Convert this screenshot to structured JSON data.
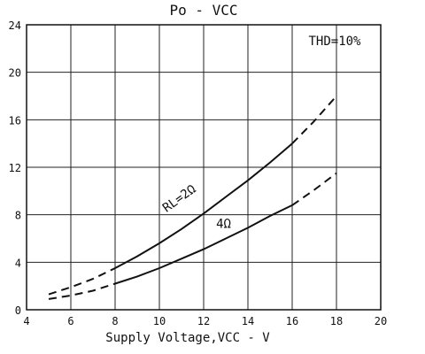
{
  "chart_data": {
    "type": "line",
    "title": "Po - VCC",
    "xlabel": "Supply Voltage,VCC - V",
    "ylabel": "",
    "xlim": [
      4,
      20
    ],
    "ylim": [
      0,
      24
    ],
    "x_ticks": [
      4,
      6,
      8,
      10,
      12,
      14,
      16,
      18,
      20
    ],
    "y_ticks": [
      0,
      4,
      8,
      12,
      16,
      20,
      24
    ],
    "grid": true,
    "condition": "THD=10%",
    "series": [
      {
        "name": "RL=2Ω",
        "x": [
          5,
          6,
          7,
          8,
          9,
          10,
          11,
          12,
          13,
          14,
          15,
          16,
          17,
          18
        ],
        "y": [
          1.3,
          1.9,
          2.6,
          3.5,
          4.5,
          5.6,
          6.8,
          8.1,
          9.5,
          10.9,
          12.4,
          14.0,
          15.9,
          18.0
        ],
        "solid_range": [
          8,
          16
        ]
      },
      {
        "name": "4Ω",
        "x": [
          5,
          6,
          7,
          8,
          9,
          10,
          11,
          12,
          13,
          14,
          15,
          16,
          17,
          18
        ],
        "y": [
          0.9,
          1.2,
          1.6,
          2.2,
          2.8,
          3.5,
          4.3,
          5.1,
          6.0,
          6.9,
          7.9,
          8.8,
          10.1,
          11.5
        ],
        "solid_range": [
          8,
          16
        ]
      }
    ]
  }
}
